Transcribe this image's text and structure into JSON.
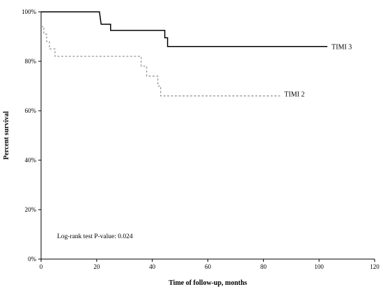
{
  "chart_data": {
    "type": "line",
    "title": "",
    "xlabel": "Time of follow-up, months",
    "ylabel": "Percent survival",
    "xlim": [
      0,
      120
    ],
    "ylim": [
      0,
      100
    ],
    "x_ticks": [
      0,
      20,
      40,
      60,
      80,
      100,
      120
    ],
    "x_tick_labels": [
      "0",
      "20",
      "40",
      "60",
      "80",
      "100",
      "120"
    ],
    "y_ticks": [
      0,
      20,
      40,
      60,
      80,
      100
    ],
    "y_tick_labels": [
      "0%",
      "20%",
      "40%",
      "60%",
      "80%",
      "100%"
    ],
    "grid": false,
    "legend": "none",
    "step": true,
    "series": [
      {
        "name": "TIMI 3",
        "style": "solid",
        "color": "#000000",
        "points": [
          [
            0,
            100
          ],
          [
            21,
            100
          ],
          [
            21.3,
            97.5
          ],
          [
            21.6,
            95
          ],
          [
            25,
            95
          ],
          [
            25,
            92.5
          ],
          [
            44.5,
            92.5
          ],
          [
            44.5,
            89.5
          ],
          [
            45.5,
            89.5
          ],
          [
            45.5,
            86
          ],
          [
            103,
            86
          ]
        ]
      },
      {
        "name": "TIMI 2",
        "style": "dashed",
        "color": "#999999",
        "points": [
          [
            0,
            94
          ],
          [
            1,
            94
          ],
          [
            1,
            91
          ],
          [
            2,
            91
          ],
          [
            2,
            88
          ],
          [
            3,
            88
          ],
          [
            3,
            85
          ],
          [
            5,
            85
          ],
          [
            5,
            82
          ],
          [
            36,
            82
          ],
          [
            36,
            78
          ],
          [
            38,
            78
          ],
          [
            38,
            74
          ],
          [
            42,
            74
          ],
          [
            42,
            70
          ],
          [
            43,
            70
          ],
          [
            43,
            66
          ],
          [
            86,
            66
          ]
        ]
      }
    ],
    "annotations": [
      {
        "text": "Log-rank test P-value: 0.024",
        "x": 6,
        "y": 9
      }
    ]
  }
}
